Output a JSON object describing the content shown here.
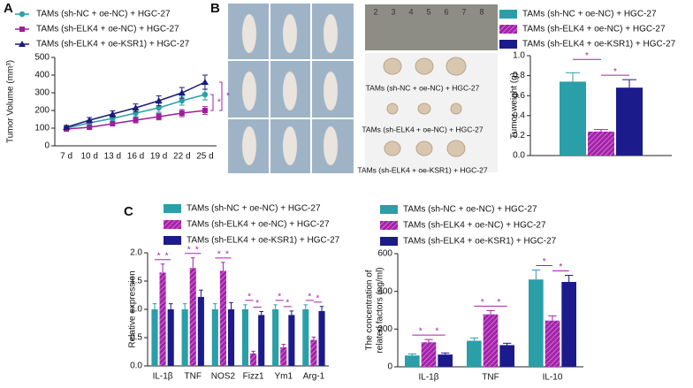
{
  "panel_labels": [
    "A",
    "B",
    "C"
  ],
  "ruler_labels": [
    "2",
    "3",
    "4",
    "5",
    "6",
    "7",
    "8"
  ],
  "photo_labels": [
    "TAMs (sh-NC + oe-NC) + HGC-27",
    "TAMs (sh-ELK4 + oe-NC) + HGC-27",
    "TAMs (sh-ELK4 + oe-KSR1) + HGC-27"
  ],
  "chart_data": [
    {
      "type": "line",
      "y_label": "Tumor Volume (mm³)",
      "categories": [
        "7 d",
        "10 d",
        "13 d",
        "16 d",
        "19 d",
        "22 d",
        "25 d"
      ],
      "ylim": [
        0,
        500
      ],
      "yticks": [
        0,
        100,
        200,
        300,
        400,
        500
      ],
      "series": [
        {
          "name": "TAMs (sh-NC + oe-NC) + HGC-27",
          "color": "#2a9fa7",
          "marker": "circle",
          "values": [
            100,
            130,
            155,
            185,
            215,
            255,
            290
          ],
          "errors": [
            10,
            15,
            15,
            20,
            25,
            25,
            30
          ]
        },
        {
          "name": "TAMs (sh-ELK4 + oe-NC) + HGC-27",
          "color": "#9b1f9b",
          "marker": "square",
          "values": [
            95,
            105,
            125,
            145,
            165,
            185,
            200
          ],
          "errors": [
            8,
            10,
            12,
            15,
            18,
            20,
            22
          ]
        },
        {
          "name": "TAMs (sh-ELK4 + oe-KSR1) + HGC-27",
          "color": "#1b1b7a",
          "marker": "triangle",
          "values": [
            105,
            145,
            180,
            215,
            255,
            300,
            360
          ],
          "errors": [
            10,
            15,
            18,
            22,
            28,
            30,
            40
          ]
        }
      ],
      "annotations": [
        "*",
        "*"
      ]
    },
    {
      "type": "bar",
      "y_label": "Tumor weight (g)",
      "categories": [
        null
      ],
      "ylim": [
        0,
        1.0
      ],
      "yticks": [
        {
          "value": 0,
          "label": "0.0"
        },
        {
          "value": 0.2,
          "label": "0.2"
        },
        {
          "value": 0.4,
          "label": "0.4"
        },
        {
          "value": 0.6,
          "label": "0.6"
        },
        {
          "value": 0.8,
          "label": "0.8"
        },
        {
          "value": 1.0,
          "label": "1.0"
        }
      ],
      "series": [
        {
          "name": "TAMs (sh-NC + oe-NC) + HGC-27",
          "color": "#2a9fa7",
          "hatch": false,
          "values": [
            0.74
          ],
          "errors": [
            0.09
          ]
        },
        {
          "name": "TAMs (sh-ELK4 + oe-NC) + HGC-27",
          "color": "#a422a9",
          "hatch": true,
          "values": [
            0.24
          ],
          "errors": [
            0.02
          ]
        },
        {
          "name": "TAMs (sh-ELK4 + oe-KSR1) + HGC-27",
          "color": "#1b1b8b",
          "hatch": false,
          "values": [
            0.68
          ],
          "errors": [
            0.08
          ]
        }
      ],
      "annotations": [
        "*",
        "*"
      ]
    },
    {
      "type": "bar",
      "y_label": "Relative expression",
      "categories": [
        "IL-1β",
        "TNF",
        "NOS2",
        "Fizz1",
        "Ym1",
        "Arg-1"
      ],
      "ylim": [
        0,
        2.0
      ],
      "yticks": [
        {
          "value": 0,
          "label": "0.0"
        },
        {
          "value": 0.5,
          "label": "0.5"
        },
        {
          "value": 1.0,
          "label": "1.0"
        },
        {
          "value": 1.5,
          "label": "1.5"
        },
        {
          "value": 2.0,
          "label": "2.0"
        }
      ],
      "series": [
        {
          "name": "TAMs (sh-NC + oe-NC) + HGC-27",
          "color": "#2a9fa7",
          "hatch": false,
          "values": [
            1.0,
            1.0,
            1.0,
            1.0,
            1.0,
            1.0
          ],
          "errors": [
            0.1,
            0.1,
            0.1,
            0.08,
            0.08,
            0.08
          ]
        },
        {
          "name": "TAMs (sh-ELK4 + oe-NC) + HGC-27",
          "color": "#a422a9",
          "hatch": true,
          "values": [
            1.65,
            1.73,
            1.68,
            0.22,
            0.33,
            0.46
          ],
          "errors": [
            0.15,
            0.18,
            0.15,
            0.04,
            0.05,
            0.05
          ]
        },
        {
          "name": "TAMs (sh-ELK4 + oe-KSR1) + HGC-27",
          "color": "#1b1b8b",
          "hatch": false,
          "values": [
            1.0,
            1.22,
            1.0,
            0.9,
            0.9,
            0.97
          ],
          "errors": [
            0.1,
            0.12,
            0.12,
            0.06,
            0.07,
            0.08
          ]
        }
      ],
      "annotations": [
        "*",
        "*",
        "*",
        "*",
        "*",
        "*",
        "*",
        "*",
        "*",
        "*",
        "*",
        "*"
      ]
    },
    {
      "type": "bar",
      "y_label": [
        "The concentration of",
        "related factors (ng/ml)"
      ],
      "categories": [
        "IL-1β",
        "TNF",
        "IL-10"
      ],
      "ylim": [
        0,
        600
      ],
      "yticks": [
        0,
        200,
        400,
        600
      ],
      "series": [
        {
          "name": "TAMs (sh-NC + oe-NC) + HGC-27",
          "color": "#2a9fa7",
          "hatch": false,
          "values": [
            60,
            138,
            463
          ],
          "errors": [
            8,
            15,
            50
          ]
        },
        {
          "name": "TAMs (sh-ELK4 + oe-NC) + HGC-27",
          "color": "#a422a9",
          "hatch": true,
          "values": [
            130,
            278,
            245
          ],
          "errors": [
            15,
            20,
            25
          ]
        },
        {
          "name": "TAMs (sh-ELK4 + oe-KSR1) + HGC-27",
          "color": "#1b1b8b",
          "hatch": false,
          "values": [
            65,
            115,
            450
          ],
          "errors": [
            8,
            10,
            35
          ]
        }
      ],
      "annotations": [
        "*",
        "*",
        "*",
        "*",
        "*",
        "*"
      ]
    }
  ]
}
